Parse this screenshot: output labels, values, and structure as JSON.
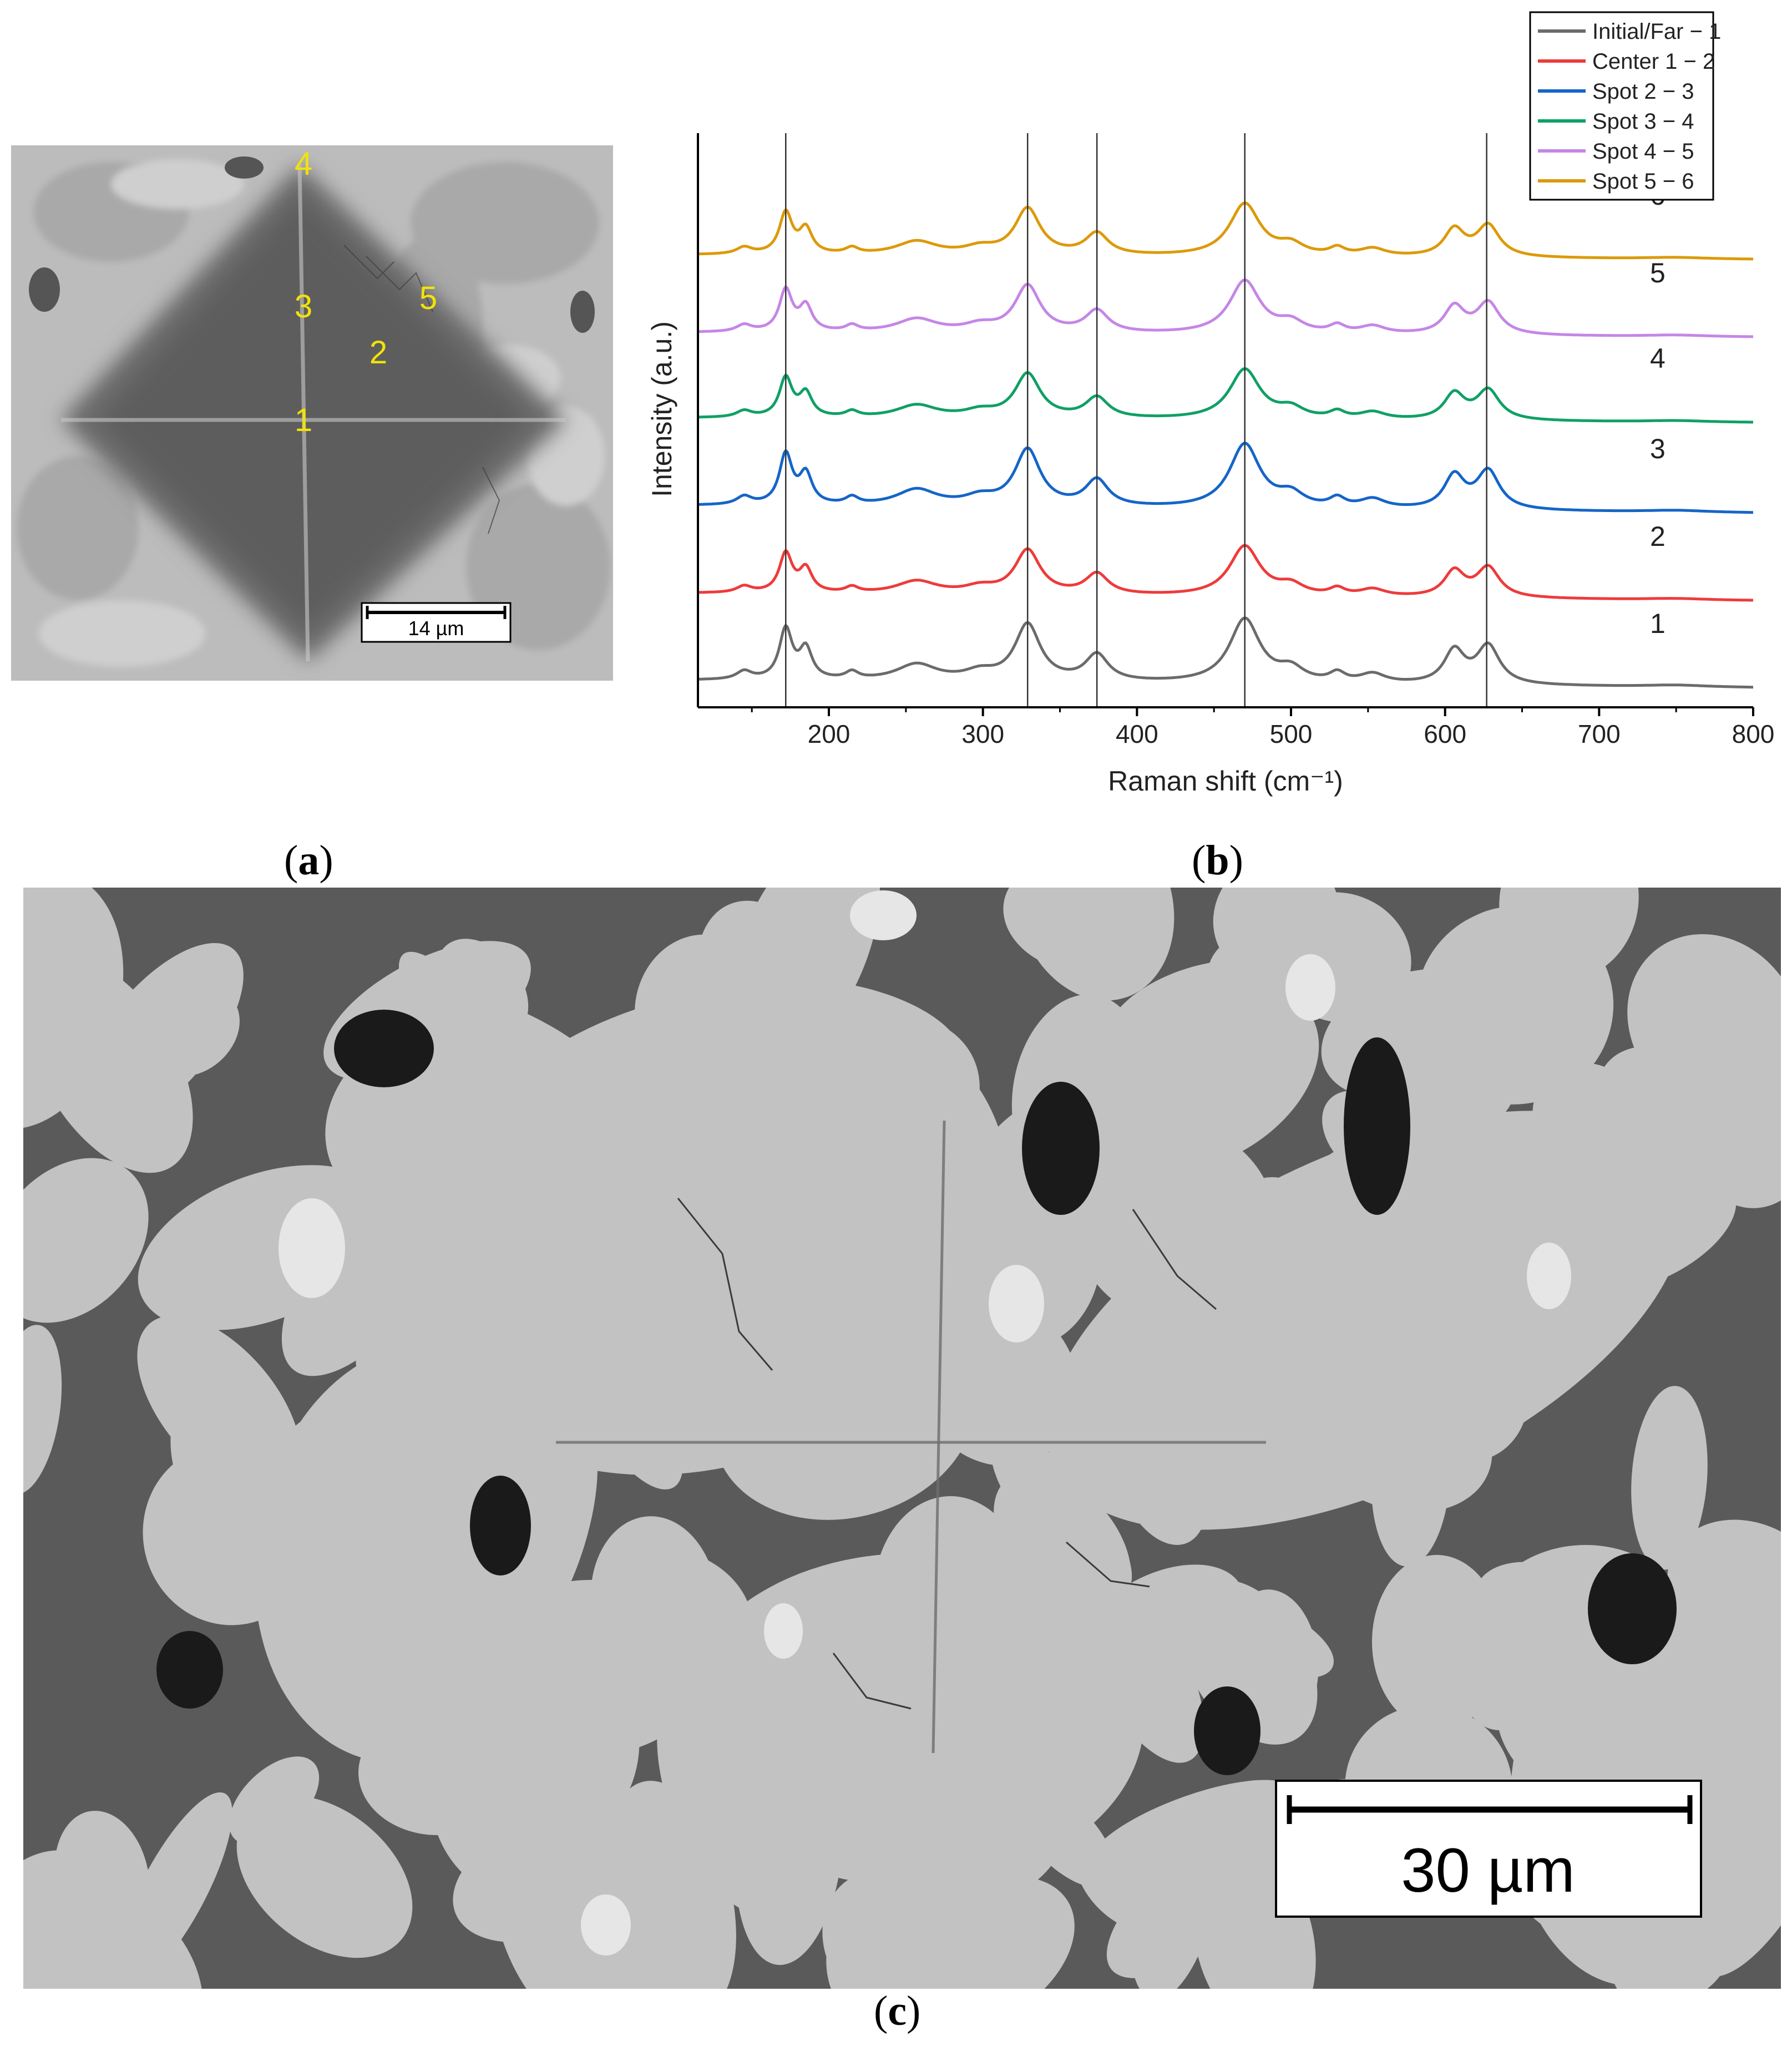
{
  "panel_a": {
    "caption_letter": "a",
    "scale_bar_label": "14 µm",
    "spot_labels": [
      "1",
      "2",
      "3",
      "4",
      "5"
    ],
    "label_color": "#f2e20a"
  },
  "panel_b": {
    "caption_letter": "b"
  },
  "panel_c": {
    "caption_letter": "c",
    "scale_bar_label": "30 µm"
  },
  "chart_data": {
    "type": "line",
    "xlabel": "Raman shift (cm⁻¹)",
    "ylabel": "Intensity (a.u.)",
    "xlim": [
      115,
      800
    ],
    "xticks": [
      200,
      300,
      400,
      500,
      600,
      700,
      800
    ],
    "y_ticks_shown": false,
    "grid": false,
    "legend_position": "top-right",
    "reference_lines_x": [
      172,
      329,
      374,
      470,
      627
    ],
    "peaks": [
      {
        "x": 145,
        "w": 6,
        "h": 0.09
      },
      {
        "x": 172,
        "w": 5,
        "h": 0.55
      },
      {
        "x": 185,
        "w": 5,
        "h": 0.33
      },
      {
        "x": 215,
        "w": 5,
        "h": 0.08
      },
      {
        "x": 257,
        "w": 16,
        "h": 0.18
      },
      {
        "x": 298,
        "w": 12,
        "h": 0.09
      },
      {
        "x": 329,
        "w": 10,
        "h": 0.62
      },
      {
        "x": 374,
        "w": 9,
        "h": 0.29
      },
      {
        "x": 470,
        "w": 12,
        "h": 0.7
      },
      {
        "x": 500,
        "w": 10,
        "h": 0.14
      },
      {
        "x": 530,
        "w": 6,
        "h": 0.1
      },
      {
        "x": 553,
        "w": 10,
        "h": 0.1
      },
      {
        "x": 606,
        "w": 8,
        "h": 0.36
      },
      {
        "x": 628,
        "w": 9,
        "h": 0.42
      },
      {
        "x": 750,
        "w": 25,
        "h": 0.02
      }
    ],
    "series": [
      {
        "name": "Initial/Far − 1",
        "trace_label": "1",
        "color": "#6b6b6b",
        "scale": 1.0,
        "baseline_drop": 0.08
      },
      {
        "name": "Center 1 − 2",
        "trace_label": "2",
        "color": "#ee3b3b",
        "scale": 0.78,
        "baseline_drop": 0.08
      },
      {
        "name": "Spot 2 − 3",
        "trace_label": "3",
        "color": "#1565c8",
        "scale": 1.0,
        "baseline_drop": 0.08
      },
      {
        "name": "Spot 3 − 4",
        "trace_label": "4",
        "color": "#10a065",
        "scale": 0.78,
        "baseline_drop": 0.05
      },
      {
        "name": "Spot 4 − 5",
        "trace_label": "5",
        "color": "#c586e6",
        "scale": 0.83,
        "baseline_drop": 0.05
      },
      {
        "name": "Spot 5 − 6",
        "trace_label": "6",
        "color": "#dc9a0a",
        "scale": 0.82,
        "baseline_drop": 0.05
      }
    ]
  }
}
